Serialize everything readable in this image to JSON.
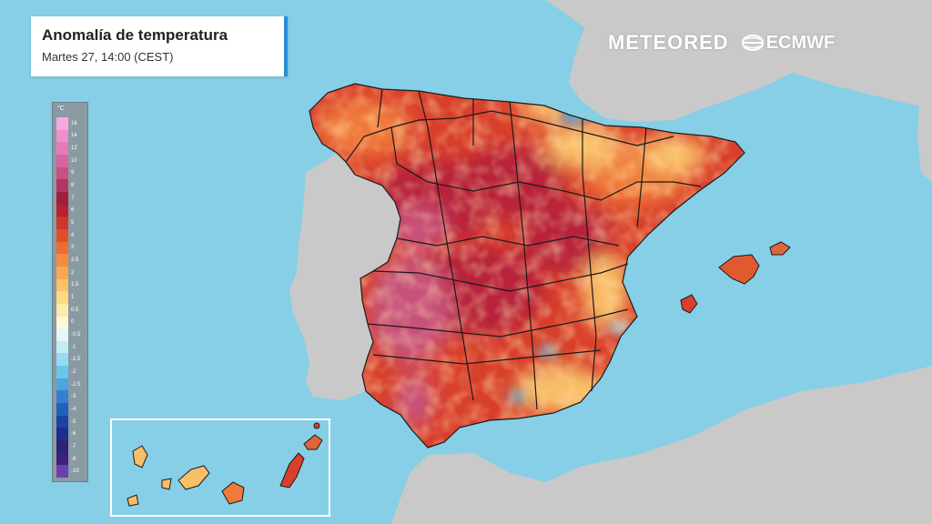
{
  "header": {
    "title": "Anomalía de temperatura",
    "subtitle": "Martes 27, 14:00 (CEST)"
  },
  "brands": {
    "meteored": "METEORED",
    "ecmwf": "ECMWF"
  },
  "legend": {
    "unit": "°C",
    "labels": [
      "16",
      "14",
      "12",
      "10",
      "9",
      "8",
      "7",
      "6",
      "5",
      "4",
      "3",
      "2.5",
      "2",
      "1.5",
      "1",
      "0.5",
      "0",
      "-0.5",
      "-1",
      "-1.5",
      "-2",
      "-2.5",
      "-3",
      "-4",
      "-5",
      "-6",
      "-7",
      "-8",
      "-10"
    ],
    "colors": [
      "#f5a9e0",
      "#ef8fce",
      "#e47bb9",
      "#d8639f",
      "#c9507f",
      "#b43560",
      "#9f1f3f",
      "#b7222c",
      "#cf3528",
      "#e14f2a",
      "#ec6d33",
      "#f38d3e",
      "#f8a84f",
      "#fbc266",
      "#fdd983",
      "#feeaa8",
      "#fff8d8",
      "#e6f6fb",
      "#c3ecf7",
      "#95dbf1",
      "#6bc6ec",
      "#4aa6e0",
      "#347fd0",
      "#2360be",
      "#1c43a6",
      "#1d2e8c",
      "#2b2476",
      "#3d1f7c",
      "#6a3fb0"
    ]
  },
  "map": {
    "colors": {
      "sea": "#86cfe6",
      "land": "#c9c9c9",
      "border": "#1a1a1a",
      "anomaly_strong": "#b8243a",
      "anomaly_medium": "#d9402c",
      "anomaly_warm": "#f07a3a",
      "anomaly_mild": "#f9bf68",
      "anomaly_extreme": "#c7527c",
      "anomaly_cool": "#4aa6e0"
    }
  }
}
